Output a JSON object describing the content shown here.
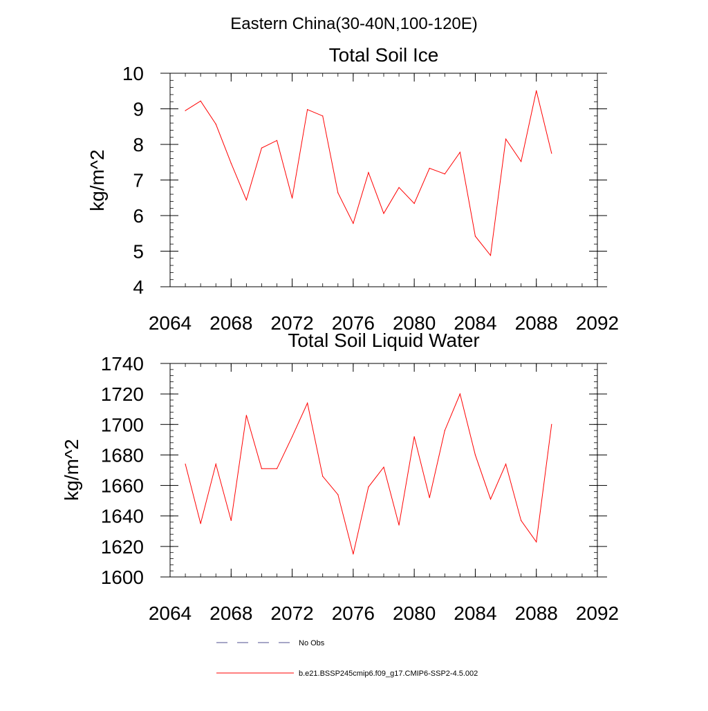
{
  "figure": {
    "suptitle": "Eastern China(30-40N,100-120E)"
  },
  "chart_data": [
    {
      "type": "line",
      "title": "Total Soil Ice",
      "xlabel": "",
      "ylabel": "kg/m^2",
      "xlim": [
        2064,
        2092
      ],
      "ylim": [
        4,
        10
      ],
      "xticks": [
        2064,
        2068,
        2072,
        2076,
        2080,
        2084,
        2088,
        2092
      ],
      "yticks": [
        4,
        5,
        6,
        7,
        8,
        9,
        10
      ],
      "xtick_labels": [
        "2064",
        "2068",
        "2072",
        "2076",
        "2080",
        "2084",
        "2088",
        "2092"
      ],
      "ytick_labels": [
        "4",
        "5",
        "6",
        "7",
        "8",
        "9",
        "10"
      ],
      "x": [
        2065,
        2066,
        2067,
        2068,
        2069,
        2070,
        2071,
        2072,
        2073,
        2074,
        2075,
        2076,
        2077,
        2078,
        2079,
        2080,
        2081,
        2082,
        2083,
        2084,
        2085,
        2086,
        2087,
        2088,
        2089
      ],
      "series": [
        {
          "color": "#ff0000",
          "values": [
            8.95,
            9.22,
            8.57,
            7.47,
            6.44,
            7.9,
            8.11,
            6.49,
            8.98,
            8.8,
            6.64,
            5.78,
            7.21,
            6.06,
            6.79,
            6.34,
            7.33,
            7.17,
            7.78,
            5.42,
            4.88,
            8.15,
            7.52,
            9.51,
            7.75
          ]
        }
      ]
    },
    {
      "type": "line",
      "title": "Total Soil Liquid Water",
      "xlabel": "",
      "ylabel": "kg/m^2",
      "xlim": [
        2064,
        2092
      ],
      "ylim": [
        1600,
        1740
      ],
      "xticks": [
        2064,
        2068,
        2072,
        2076,
        2080,
        2084,
        2088,
        2092
      ],
      "yticks": [
        1600,
        1620,
        1640,
        1660,
        1680,
        1700,
        1720,
        1740
      ],
      "xtick_labels": [
        "2064",
        "2068",
        "2072",
        "2076",
        "2080",
        "2084",
        "2088",
        "2092"
      ],
      "ytick_labels": [
        "1600",
        "1620",
        "1640",
        "1660",
        "1680",
        "1700",
        "1720",
        "1740"
      ],
      "x": [
        2065,
        2066,
        2067,
        2068,
        2069,
        2070,
        2071,
        2072,
        2073,
        2074,
        2075,
        2076,
        2077,
        2078,
        2079,
        2080,
        2081,
        2082,
        2083,
        2084,
        2085,
        2086,
        2087,
        2088,
        2089
      ],
      "series": [
        {
          "color": "#ff0000",
          "values": [
            1674,
            1635,
            1674,
            1637,
            1706,
            1671,
            1671,
            1692,
            1714,
            1666,
            1654,
            1615,
            1659,
            1672,
            1634,
            1692,
            1652,
            1696,
            1720,
            1680,
            1651,
            1674,
            1637,
            1623,
            1700
          ]
        }
      ]
    }
  ],
  "legend": {
    "placement": "bottom",
    "items": [
      {
        "label": "No Obs",
        "color": "#4d4d8f",
        "dash": "dashed"
      },
      {
        "label": "b.e21.BSSP245cmip6.f09_g17.CMIP6-SSP2-4.5.002",
        "color": "#ff0000",
        "dash": "solid"
      }
    ]
  }
}
